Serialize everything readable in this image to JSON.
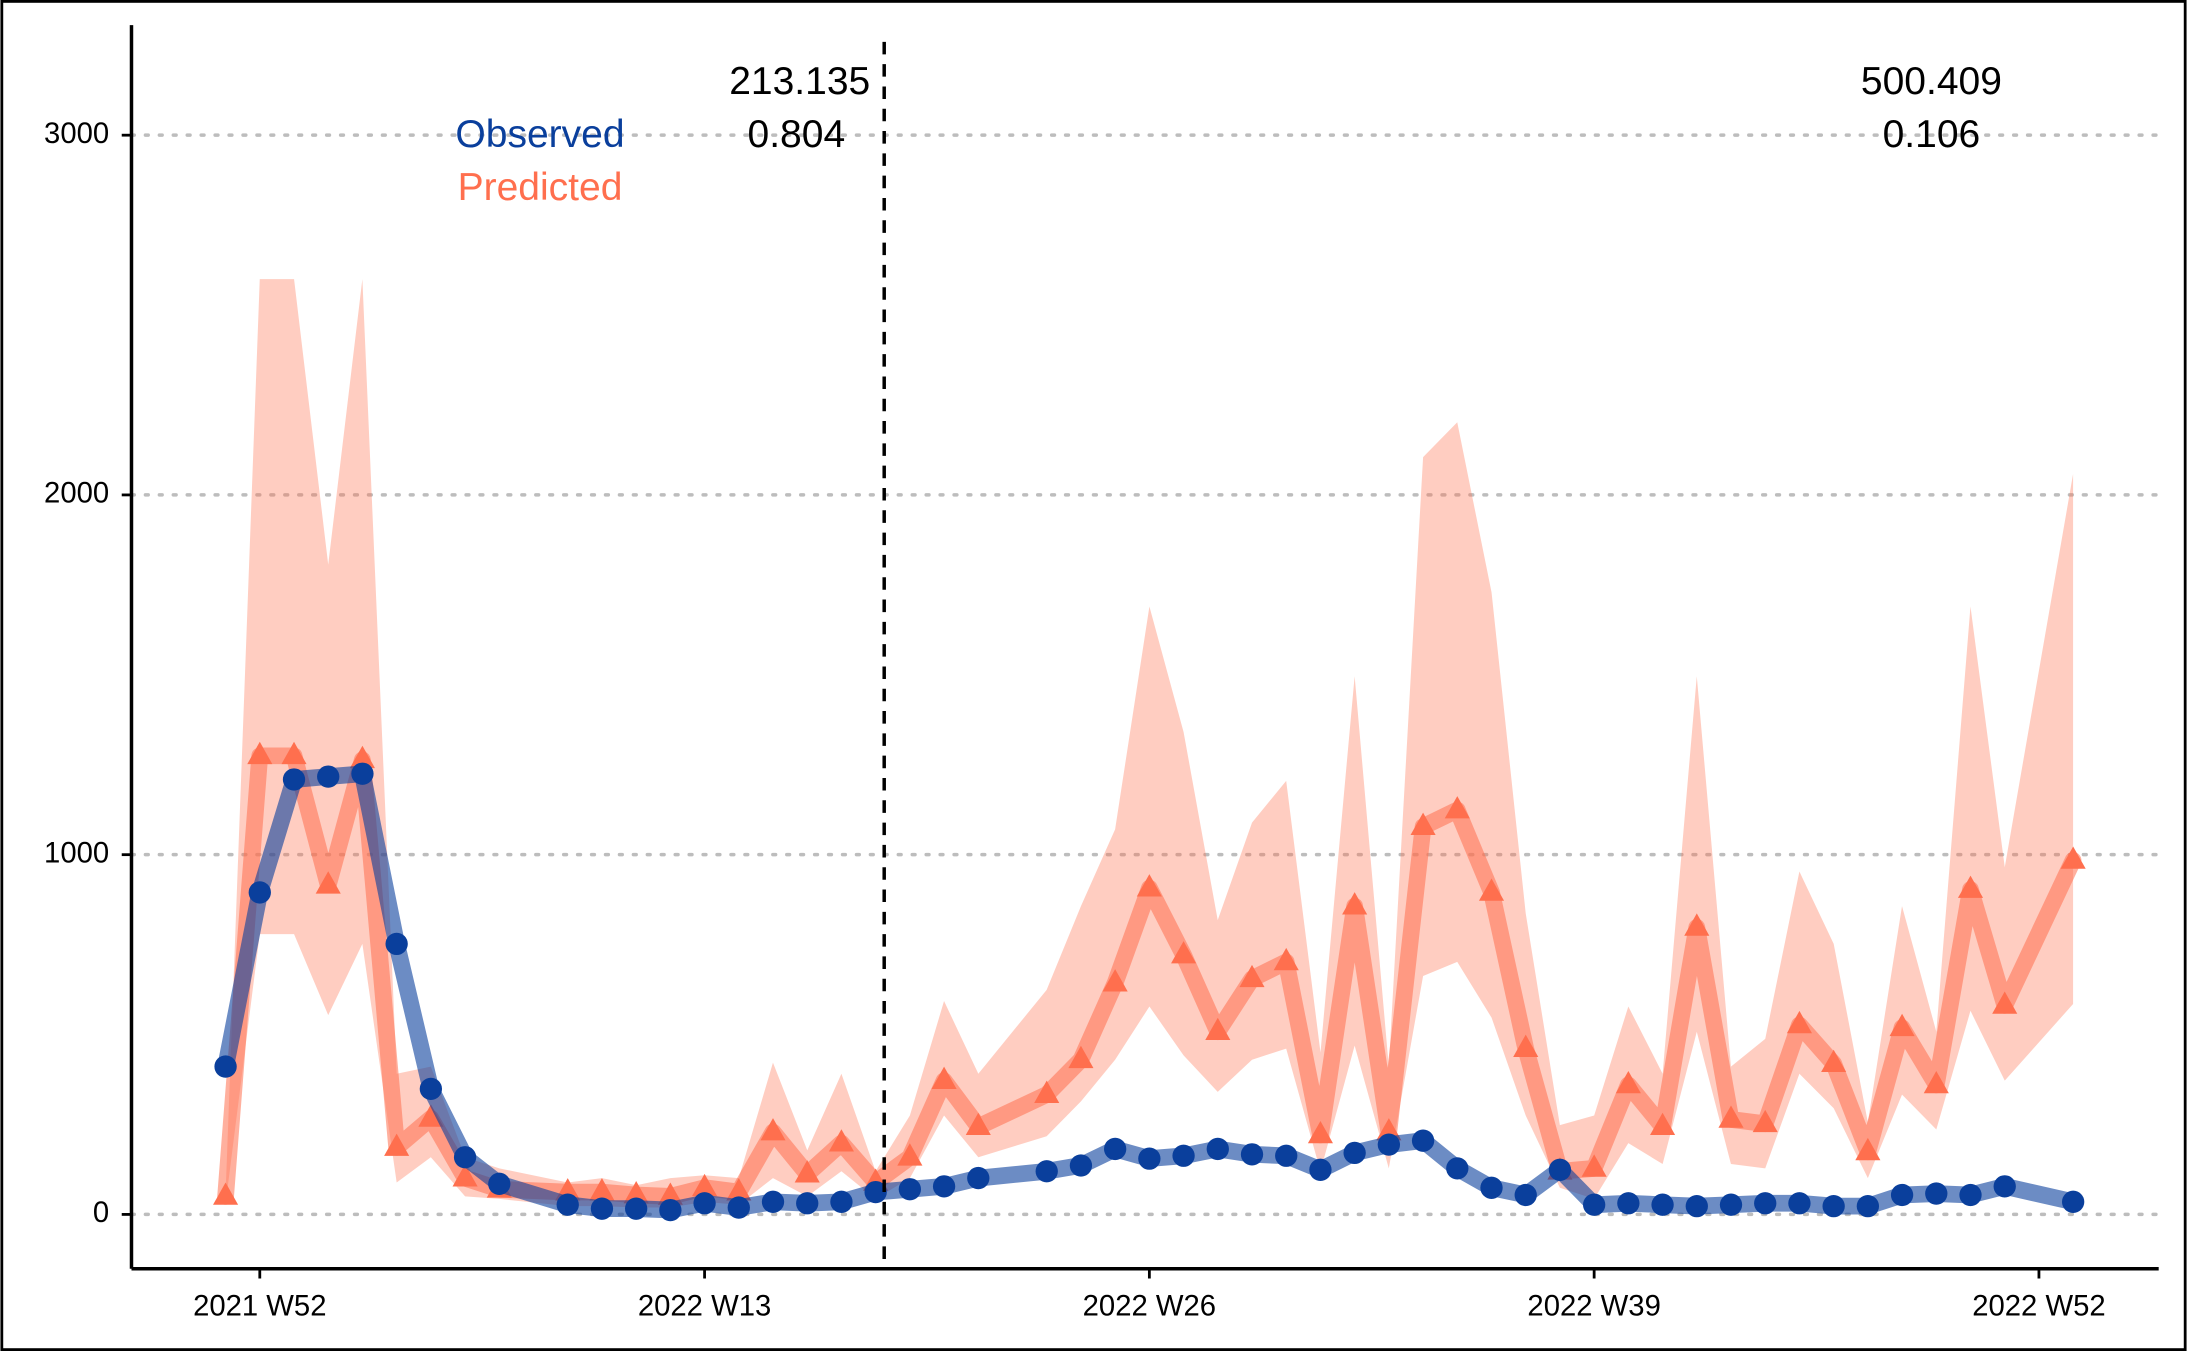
{
  "chart_data": {
    "type": "line",
    "x": [
      -1,
      0,
      1,
      2,
      3,
      4,
      5,
      6,
      7,
      9,
      10,
      11,
      12,
      13,
      14,
      15,
      16,
      17,
      18,
      19,
      20,
      21,
      23,
      24,
      25,
      26,
      27,
      28,
      29,
      30,
      31,
      32,
      33,
      34,
      35,
      36,
      37,
      38,
      39,
      40,
      41,
      42,
      43,
      44,
      45,
      46,
      47,
      48,
      49,
      50,
      51,
      53
    ],
    "series": [
      {
        "name": "Observed",
        "color": "#0a3f9c",
        "values": [
          411,
          895,
          1209,
          1217,
          1225,
          752,
          349,
          159,
          85,
          27,
          16,
          16,
          12,
          31,
          19,
          35,
          31,
          35,
          62,
          70,
          78,
          101,
          120,
          136,
          182,
          155,
          163,
          182,
          167,
          163,
          124,
          171,
          194,
          205,
          128,
          74,
          54,
          124,
          27,
          31,
          27,
          23,
          27,
          31,
          31,
          23,
          23,
          54,
          58,
          54,
          78,
          35
        ]
      },
      {
        "name": "Predicted",
        "color": "#ff6f4e",
        "values": [
          50,
          1275,
          1275,
          915,
          1264,
          186,
          267,
          101,
          70,
          62,
          62,
          54,
          50,
          74,
          62,
          229,
          112,
          198,
          89,
          159,
          372,
          244,
          333,
          430,
          643,
          907,
          721,
          508,
          655,
          702,
          221,
          857,
          229,
          1078,
          1124,
          895,
          461,
          120,
          128,
          360,
          244,
          798,
          264,
          252,
          527,
          419,
          174,
          519,
          360,
          903,
          581,
          984
        ],
        "lower": [
          30,
          779,
          779,
          554,
          752,
          89,
          159,
          50,
          43,
          23,
          23,
          19,
          19,
          35,
          27,
          101,
          50,
          120,
          43,
          101,
          275,
          159,
          217,
          314,
          430,
          578,
          442,
          341,
          430,
          461,
          120,
          469,
          128,
          663,
          702,
          547,
          275,
          74,
          43,
          198,
          140,
          508,
          140,
          128,
          391,
          295,
          101,
          333,
          236,
          566,
          372,
          585
        ],
        "upper": [
          60,
          2600,
          2600,
          1806,
          2600,
          391,
          411,
          159,
          128,
          89,
          101,
          81,
          101,
          109,
          101,
          422,
          178,
          391,
          120,
          275,
          593,
          391,
          624,
          857,
          1070,
          1690,
          1341,
          818,
          1089,
          1205,
          450,
          1496,
          411,
          2105,
          2202,
          1729,
          837,
          248,
          275,
          578,
          391,
          1496,
          411,
          488,
          953,
          752,
          256,
          857,
          508,
          1690,
          965,
          2058
        ]
      }
    ],
    "xlim": [
      -3.75,
      55.5
    ],
    "xticks": [
      {
        "value": 0,
        "label": "2021 W52"
      },
      {
        "value": 13,
        "label": "2022 W13"
      },
      {
        "value": 26,
        "label": "2022 W26"
      },
      {
        "value": 39,
        "label": "2022 W39"
      },
      {
        "value": 52,
        "label": "2022 W52"
      }
    ],
    "ylim": [
      -151,
      3306
    ],
    "yticks": [
      0,
      1000,
      2000,
      3000
    ],
    "grid": true,
    "vline_x": 18.25,
    "annotations": [
      "213.135",
      "0.804",
      "500.409",
      "0.106"
    ]
  }
}
